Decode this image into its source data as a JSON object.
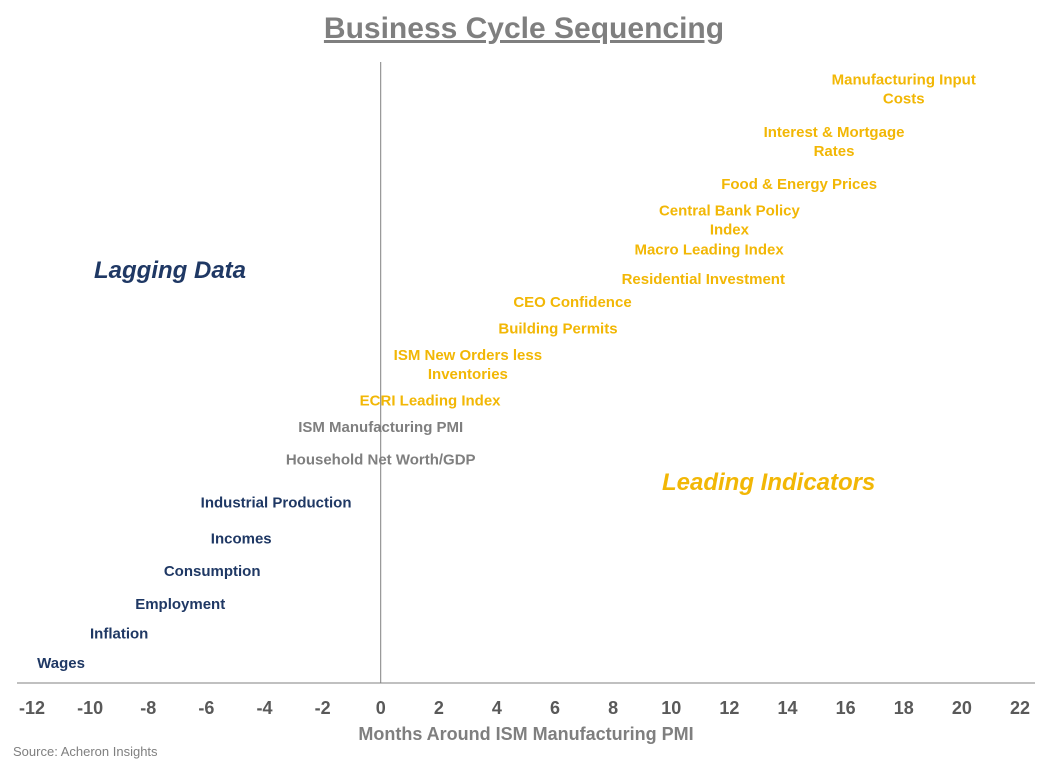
{
  "chart_data": {
    "type": "scatter",
    "title": "Business Cycle Sequencing",
    "xlabel": "Months Around ISM Manufacturing PMI",
    "ylabel": "",
    "xlim": [
      -12,
      22
    ],
    "xticks": [
      -12,
      -10,
      -8,
      -6,
      -4,
      -2,
      0,
      2,
      4,
      6,
      8,
      10,
      12,
      14,
      16,
      18,
      20,
      22
    ],
    "grid": false,
    "source": "Source: Acheron Insights",
    "regions": [
      {
        "label": "Lagging Data",
        "color": "#1f3864"
      },
      {
        "label": "Leading Indicators",
        "color": "#f2b705"
      }
    ],
    "colors": {
      "lagging": "#1f3864",
      "neutral": "#7f7f7f",
      "leading": "#f2b705"
    },
    "series": [
      {
        "name": "Manufacturing Input Costs",
        "lines": [
          "Manufacturing Input",
          "Costs"
        ],
        "x": 18.0,
        "rank": 21,
        "group": "leading"
      },
      {
        "name": "Interest & Mortgage Rates",
        "lines": [
          "Interest & Mortgage",
          "Rates"
        ],
        "x": 15.6,
        "rank": 19.4,
        "group": "leading"
      },
      {
        "name": "Food & Energy Prices",
        "lines": [
          "Food & Energy Prices"
        ],
        "x": 14.4,
        "rank": 18.1,
        "group": "leading"
      },
      {
        "name": "Central Bank Policy Index",
        "lines": [
          "Central Bank Policy",
          "Index"
        ],
        "x": 12.0,
        "rank": 17.0,
        "group": "leading"
      },
      {
        "name": "Macro Leading Index",
        "lines": [
          "Macro Leading Index"
        ],
        "x": 11.3,
        "rank": 16.1,
        "group": "leading"
      },
      {
        "name": "Residential Investment",
        "lines": [
          "Residential Investment"
        ],
        "x": 11.1,
        "rank": 15.2,
        "group": "leading"
      },
      {
        "name": "CEO Confidence",
        "lines": [
          "CEO Confidence"
        ],
        "x": 6.6,
        "rank": 14.5,
        "group": "leading"
      },
      {
        "name": "Building Permits",
        "lines": [
          "Building Permits"
        ],
        "x": 6.1,
        "rank": 13.7,
        "group": "leading"
      },
      {
        "name": "ISM New Orders less Inventories",
        "lines": [
          "ISM New Orders less",
          "Inventories"
        ],
        "x": 3.0,
        "rank": 12.6,
        "group": "leading"
      },
      {
        "name": "ECRI Leading Index",
        "lines": [
          "ECRI Leading Index"
        ],
        "x": 1.7,
        "rank": 11.5,
        "group": "leading"
      },
      {
        "name": "ISM Manufacturing PMI",
        "lines": [
          "ISM Manufacturing PMI"
        ],
        "x": 0.0,
        "rank": 10.7,
        "group": "neutral"
      },
      {
        "name": "Household Net Worth/GDP",
        "lines": [
          "Household Net Worth/GDP"
        ],
        "x": 0.0,
        "rank": 9.7,
        "group": "neutral"
      },
      {
        "name": "Industrial Production",
        "lines": [
          "Industrial Production"
        ],
        "x": -3.6,
        "rank": 8.4,
        "group": "lagging"
      },
      {
        "name": "Incomes",
        "lines": [
          "Incomes"
        ],
        "x": -4.8,
        "rank": 7.3,
        "group": "lagging"
      },
      {
        "name": "Consumption",
        "lines": [
          "Consumption"
        ],
        "x": -5.8,
        "rank": 6.3,
        "group": "lagging"
      },
      {
        "name": "Employment",
        "lines": [
          "Employment"
        ],
        "x": -6.9,
        "rank": 5.3,
        "group": "lagging"
      },
      {
        "name": "Inflation",
        "lines": [
          "Inflation"
        ],
        "x": -9.0,
        "rank": 4.4,
        "group": "lagging"
      },
      {
        "name": "Wages",
        "lines": [
          "Wages"
        ],
        "x": -11.0,
        "rank": 3.5,
        "group": "lagging"
      }
    ]
  }
}
